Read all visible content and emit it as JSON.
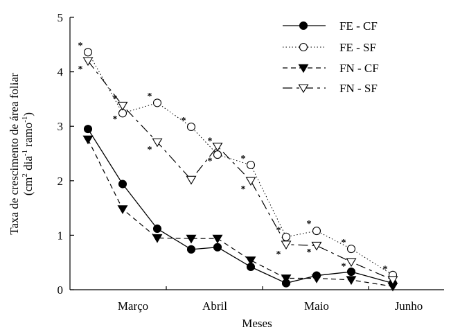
{
  "chart_data": {
    "type": "line",
    "xlabel": "Meses",
    "ylabel": {
      "line1": "Taxa de crescimento de área foliar",
      "line2_open": "(cm",
      "sup1": "2",
      "dia": " dia",
      "sup2": "-1",
      "ramo": " ramo",
      "sup3": "-1",
      "line2_close": ")"
    },
    "ylim": [
      0,
      5
    ],
    "yticks": [
      "0",
      "1",
      "2",
      "3",
      "4",
      "5"
    ],
    "month_labels": [
      "Março",
      "Abril",
      "Maio",
      "Junho"
    ],
    "grid": false,
    "legend_position": "top-right",
    "x": [
      1,
      2,
      3,
      4,
      5,
      6,
      7,
      8,
      9,
      10
    ],
    "series": [
      {
        "name": "FE - CF",
        "marker": "filled-circle",
        "line": "solid",
        "values": [
          2.95,
          1.94,
          1.12,
          0.74,
          0.78,
          0.42,
          0.12,
          0.26,
          0.33,
          0.12
        ]
      },
      {
        "name": "FE - SF",
        "marker": "open-circle",
        "line": "dotted",
        "values": [
          4.36,
          3.24,
          3.43,
          2.99,
          2.48,
          2.29,
          0.97,
          1.08,
          0.75,
          0.27
        ]
      },
      {
        "name": "FN - CF",
        "marker": "filled-triangle-down",
        "line": "dashed",
        "values": [
          2.76,
          1.48,
          0.95,
          0.94,
          0.94,
          0.54,
          0.21,
          0.21,
          0.18,
          0.06
        ]
      },
      {
        "name": "FN - SF",
        "marker": "open-triangle-down",
        "line": "long-dash",
        "values": [
          4.2,
          3.38,
          2.71,
          2.02,
          2.63,
          2.0,
          0.83,
          0.81,
          0.51,
          0.18
        ]
      }
    ],
    "significance": {
      "symbol": "*",
      "points": [
        {
          "x": 1,
          "y": 4.49
        },
        {
          "x": 1,
          "y": 4.06
        },
        {
          "x": 2,
          "y": 3.52
        },
        {
          "x": 2,
          "y": 3.14
        },
        {
          "x": 3,
          "y": 3.56
        },
        {
          "x": 3,
          "y": 2.58
        },
        {
          "x": 4,
          "y": 3.12
        },
        {
          "x": 5,
          "y": 2.74
        },
        {
          "x": 5,
          "y": 2.37
        },
        {
          "x": 6,
          "y": 2.42
        },
        {
          "x": 6,
          "y": 1.86
        },
        {
          "x": 7,
          "y": 1.1
        },
        {
          "x": 7,
          "y": 0.66
        },
        {
          "x": 8,
          "y": 1.22
        },
        {
          "x": 8,
          "y": 0.7
        },
        {
          "x": 9,
          "y": 0.88
        },
        {
          "x": 9,
          "y": 0.44
        },
        {
          "x": 10,
          "y": 0.39
        }
      ]
    },
    "colors": {
      "lines": "#000000",
      "background": "#ffffff"
    }
  }
}
